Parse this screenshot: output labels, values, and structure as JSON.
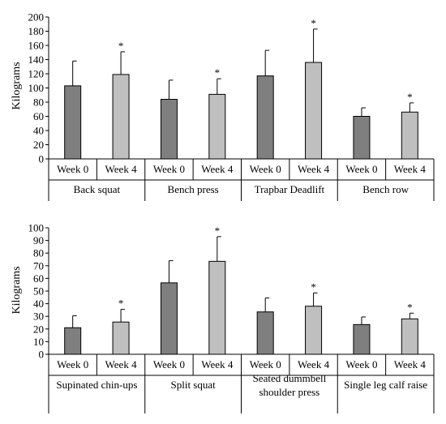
{
  "colors": {
    "week0": "#7f7f7f",
    "week4": "#bfbfbf",
    "stroke": "#000000",
    "axis": "#000000"
  },
  "chart_data": [
    {
      "type": "bar",
      "ylabel": "Kilograms",
      "ylim": [
        0,
        200
      ],
      "ytick_step": 20,
      "yticks": [
        "0",
        "20",
        "40",
        "60",
        "80",
        "100",
        "120",
        "140",
        "160",
        "180",
        "200"
      ],
      "series_labels": [
        "Week 0",
        "Week 4"
      ],
      "groups": [
        {
          "name": "Back squat",
          "name_lines": [
            "Back squat"
          ],
          "values": [
            103,
            119
          ],
          "errors": [
            35,
            32
          ],
          "significant": [
            false,
            true
          ]
        },
        {
          "name": "Bench press",
          "name_lines": [
            "Bench press"
          ],
          "values": [
            84,
            91
          ],
          "errors": [
            27,
            22
          ],
          "significant": [
            false,
            true
          ]
        },
        {
          "name": "Trapbar Deadlift",
          "name_lines": [
            "Trapbar Deadlift"
          ],
          "values": [
            117,
            136
          ],
          "errors": [
            36,
            47
          ],
          "significant": [
            false,
            true
          ]
        },
        {
          "name": "Bench row",
          "name_lines": [
            "Bench row"
          ],
          "values": [
            60,
            66
          ],
          "errors": [
            12,
            13
          ],
          "significant": [
            false,
            true
          ]
        }
      ],
      "significance_marker": "*"
    },
    {
      "type": "bar",
      "ylabel": "Kilograms",
      "ylim": [
        0,
        100
      ],
      "ytick_step": 10,
      "yticks": [
        "0",
        "10",
        "20",
        "30",
        "40",
        "50",
        "60",
        "70",
        "80",
        "90",
        "100"
      ],
      "series_labels": [
        "Week 0",
        "Week 4"
      ],
      "groups": [
        {
          "name": "Supinated chin-ups",
          "name_lines": [
            "Supinated chin-ups"
          ],
          "values": [
            21,
            25.5
          ],
          "errors": [
            9.5,
            10
          ],
          "significant": [
            false,
            true
          ]
        },
        {
          "name": "Split squat",
          "name_lines": [
            "Split squat"
          ],
          "values": [
            56.5,
            73.5
          ],
          "errors": [
            17.5,
            19.5
          ],
          "significant": [
            false,
            true
          ]
        },
        {
          "name": "Seated dummbell shoulder press",
          "name_lines": [
            "Seated dummbell",
            "shoulder press"
          ],
          "values": [
            33.5,
            38
          ],
          "errors": [
            11,
            10.5
          ],
          "significant": [
            false,
            true
          ]
        },
        {
          "name": "Single leg calf raise",
          "name_lines": [
            "Single leg calf raise"
          ],
          "values": [
            23.5,
            28
          ],
          "errors": [
            6,
            4.5
          ],
          "significant": [
            false,
            true
          ]
        }
      ],
      "significance_marker": "*"
    }
  ]
}
